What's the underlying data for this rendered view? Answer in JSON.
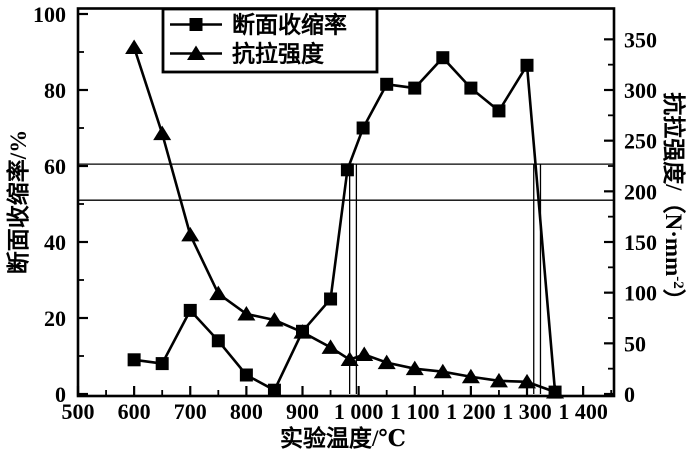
{
  "chart_data": {
    "type": "line",
    "title": "",
    "xlabel": "实验温度/℃",
    "ylabel_left": "断面收缩率/%",
    "ylabel_right": "抗拉强度/（N·mm⁻²）",
    "ylabel_right_parts": [
      "抗拉强度/（N·mm",
      "-2",
      "）"
    ],
    "xlim": [
      500,
      1455
    ],
    "ylim_left": [
      0,
      100
    ],
    "ylim_right": [
      0,
      375
    ],
    "x_tick_values": [
      500,
      600,
      700,
      800,
      900,
      1000,
      1100,
      1200,
      1300,
      1400
    ],
    "x_tick_labels": [
      "500",
      "600",
      "700",
      "800",
      "900",
      "1 000",
      "1 100",
      "1 200",
      "1 300",
      "1 400"
    ],
    "y_ticks_left": [
      0,
      20,
      40,
      60,
      80,
      100
    ],
    "y_ticks_right": [
      0,
      50,
      100,
      150,
      200,
      250,
      300,
      350
    ],
    "grid": "off",
    "legend_position": "top-center-inside",
    "legend": [
      {
        "label": "断面收缩率",
        "marker": "square"
      },
      {
        "label": "抗拉强度",
        "marker": "triangle"
      }
    ],
    "series": [
      {
        "name": "断面收缩率",
        "axis": "left",
        "unit": "%",
        "marker": "square",
        "points": [
          [
            600,
            9
          ],
          [
            650,
            8
          ],
          [
            700,
            22
          ],
          [
            750,
            14
          ],
          [
            800,
            5
          ],
          [
            850,
            1
          ],
          [
            900,
            16.5
          ],
          [
            950,
            25
          ],
          [
            980,
            59
          ],
          [
            1008,
            70
          ],
          [
            1050,
            81.5
          ],
          [
            1100,
            80.5
          ],
          [
            1150,
            88.5
          ],
          [
            1200,
            80.5
          ],
          [
            1250,
            74.5
          ],
          [
            1300,
            86.5
          ],
          [
            1350,
            0.5
          ]
        ]
      },
      {
        "name": "抗拉强度",
        "axis": "right",
        "unit": "N·mm⁻²",
        "marker": "triangle",
        "points": [
          [
            600,
            342
          ],
          [
            650,
            257
          ],
          [
            700,
            157
          ],
          [
            750,
            99
          ],
          [
            800,
            79
          ],
          [
            850,
            73
          ],
          [
            900,
            61
          ],
          [
            950,
            46
          ],
          [
            984,
            34
          ],
          [
            1010,
            39
          ],
          [
            1050,
            31
          ],
          [
            1100,
            25
          ],
          [
            1150,
            22
          ],
          [
            1200,
            17
          ],
          [
            1250,
            13
          ],
          [
            1300,
            12
          ],
          [
            1350,
            2
          ]
        ]
      }
    ],
    "reference_lines": {
      "horizontal": [
        {
          "axis": "left",
          "value": 60.5
        },
        {
          "axis": "left",
          "value": 51
        }
      ],
      "vertical": [
        {
          "temp": 984,
          "from": 0,
          "to": 60.5
        },
        {
          "temp": 996,
          "from": 0,
          "to": 60.5
        },
        {
          "temp": 1312,
          "from": 0,
          "to": 60.5
        },
        {
          "temp": 1324,
          "from": 0,
          "to": 60.5
        }
      ]
    },
    "colors": {
      "ink": "#000000",
      "background": "#ffffff"
    }
  }
}
